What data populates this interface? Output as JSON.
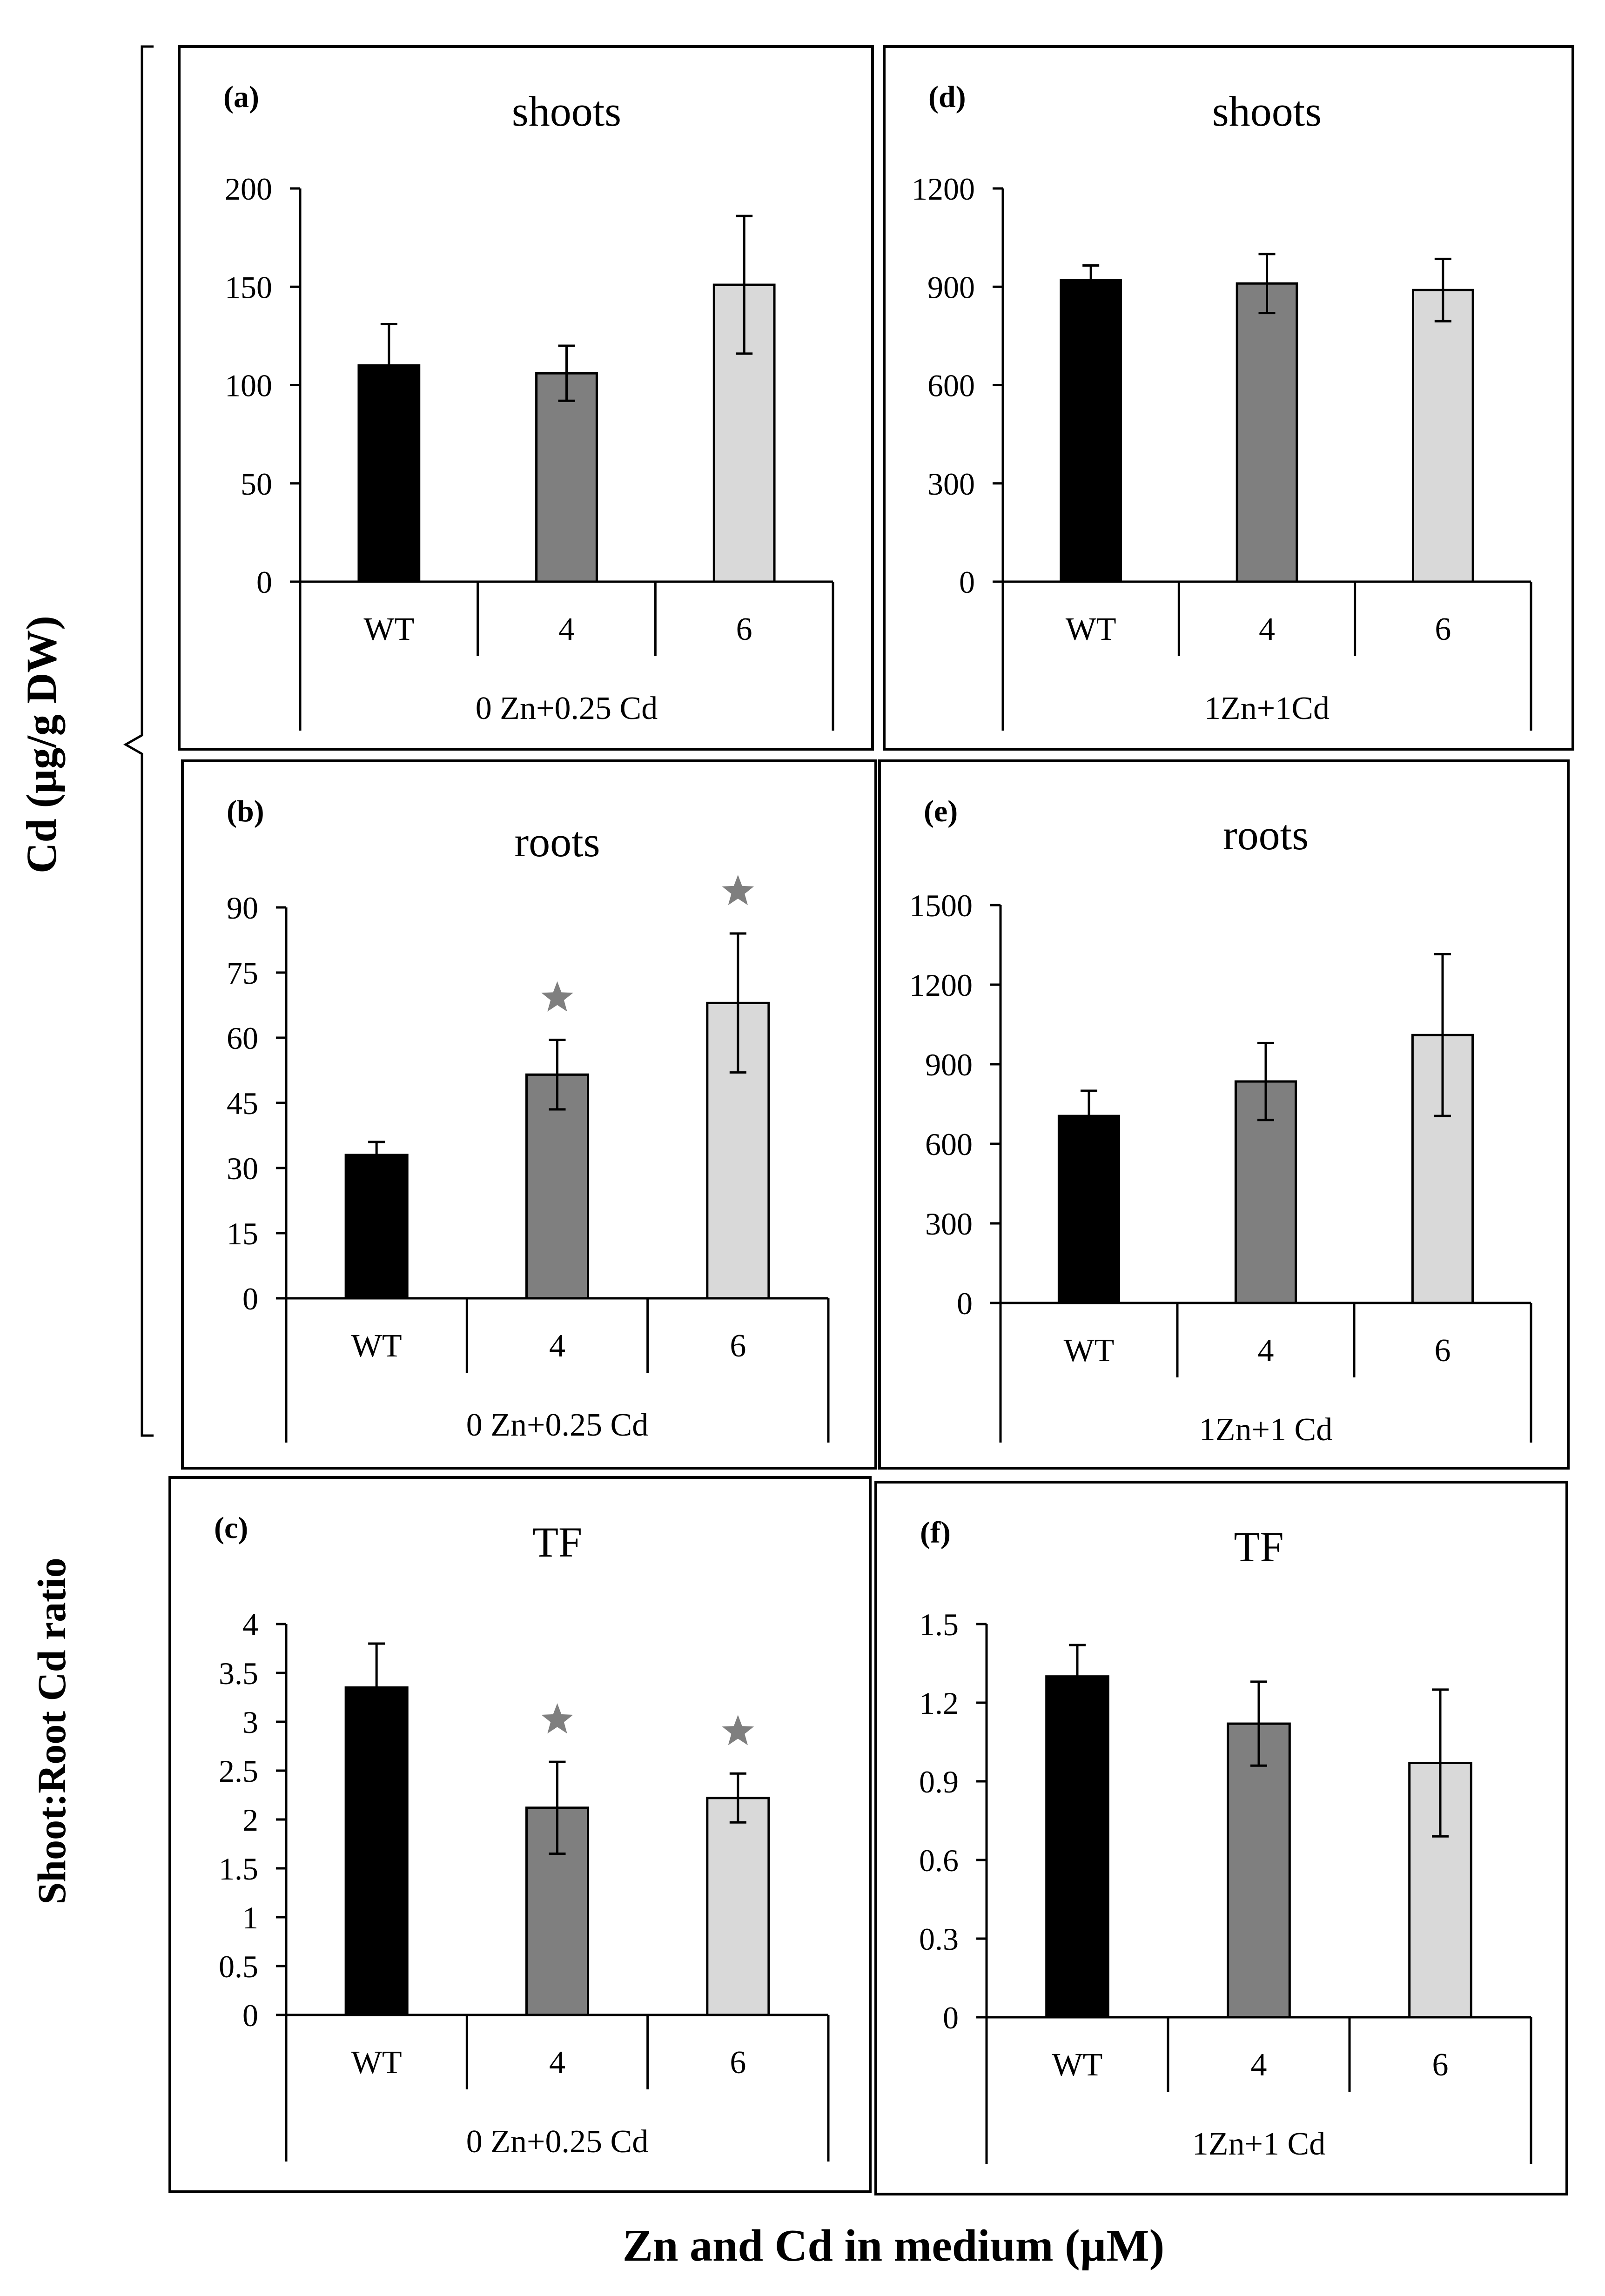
{
  "figure": {
    "ylabel_cd": "Cd (µg/g DW)",
    "ylabel_tf": "Shoot:Root Cd ratio",
    "xlabel": "Zn and Cd in medium (µM)"
  },
  "chart_data": [
    {
      "type": "bar",
      "panel": "(a)",
      "title": "shoots",
      "categories": [
        "WT",
        "4",
        "6"
      ],
      "group_label": "0 Zn+0.25 Cd",
      "values": [
        110,
        106,
        151
      ],
      "errors": [
        21,
        14,
        35
      ],
      "stars": [
        false,
        false,
        false
      ],
      "ylim": [
        0,
        200
      ],
      "yticks": [
        "0",
        "50",
        "100",
        "150",
        "200"
      ],
      "colors": [
        "#000000",
        "#7f7f7f",
        "#d9d9d9"
      ]
    },
    {
      "type": "bar",
      "panel": "(b)",
      "title": "roots",
      "categories": [
        "WT",
        "4",
        "6"
      ],
      "group_label": "0 Zn+0.25 Cd",
      "values": [
        33,
        51.5,
        68
      ],
      "errors": [
        3,
        8,
        16
      ],
      "stars": [
        false,
        true,
        true
      ],
      "ylim": [
        0,
        90
      ],
      "yticks": [
        "0",
        "15",
        "30",
        "45",
        "60",
        "75",
        "90"
      ],
      "colors": [
        "#000000",
        "#7f7f7f",
        "#d9d9d9"
      ]
    },
    {
      "type": "bar",
      "panel": "(c)",
      "title": "TF",
      "categories": [
        "WT",
        "4",
        "6"
      ],
      "group_label": "0 Zn+0.25 Cd",
      "values": [
        3.35,
        2.12,
        2.22
      ],
      "errors": [
        0.45,
        0.47,
        0.25
      ],
      "stars": [
        false,
        true,
        true
      ],
      "ylim": [
        0,
        4
      ],
      "yticks": [
        "0",
        "0.5",
        "1",
        "1.5",
        "2",
        "2.5",
        "3",
        "3.5",
        "4"
      ],
      "colors": [
        "#000000",
        "#7f7f7f",
        "#d9d9d9"
      ]
    },
    {
      "type": "bar",
      "panel": "(d)",
      "title": "shoots",
      "categories": [
        "WT",
        "4",
        "6"
      ],
      "group_label": "1Zn+1Cd",
      "values": [
        920,
        910,
        890
      ],
      "errors": [
        45,
        90,
        95
      ],
      "stars": [
        false,
        false,
        false
      ],
      "ylim": [
        0,
        1200
      ],
      "yticks": [
        "0",
        "300",
        "600",
        "900",
        "1200"
      ],
      "colors": [
        "#000000",
        "#7f7f7f",
        "#d9d9d9"
      ]
    },
    {
      "type": "bar",
      "panel": "(e)",
      "title": "roots",
      "categories": [
        "WT",
        "4",
        "6"
      ],
      "group_label": "1Zn+1 Cd",
      "values": [
        705,
        835,
        1010
      ],
      "errors": [
        95,
        145,
        305
      ],
      "stars": [
        false,
        false,
        false
      ],
      "ylim": [
        0,
        1500
      ],
      "yticks": [
        "0",
        "300",
        "600",
        "900",
        "1200",
        "1500"
      ],
      "colors": [
        "#000000",
        "#7f7f7f",
        "#d9d9d9"
      ]
    },
    {
      "type": "bar",
      "panel": "(f)",
      "title": "TF",
      "categories": [
        "WT",
        "4",
        "6"
      ],
      "group_label": "1Zn+1 Cd",
      "values": [
        1.3,
        1.12,
        0.97
      ],
      "errors": [
        0.12,
        0.16,
        0.28
      ],
      "stars": [
        false,
        false,
        false
      ],
      "ylim": [
        0,
        1.5
      ],
      "yticks": [
        "0",
        "0.3",
        "0.6",
        "0.9",
        "1.2",
        "1.5"
      ],
      "colors": [
        "#000000",
        "#7f7f7f",
        "#d9d9d9"
      ]
    }
  ]
}
